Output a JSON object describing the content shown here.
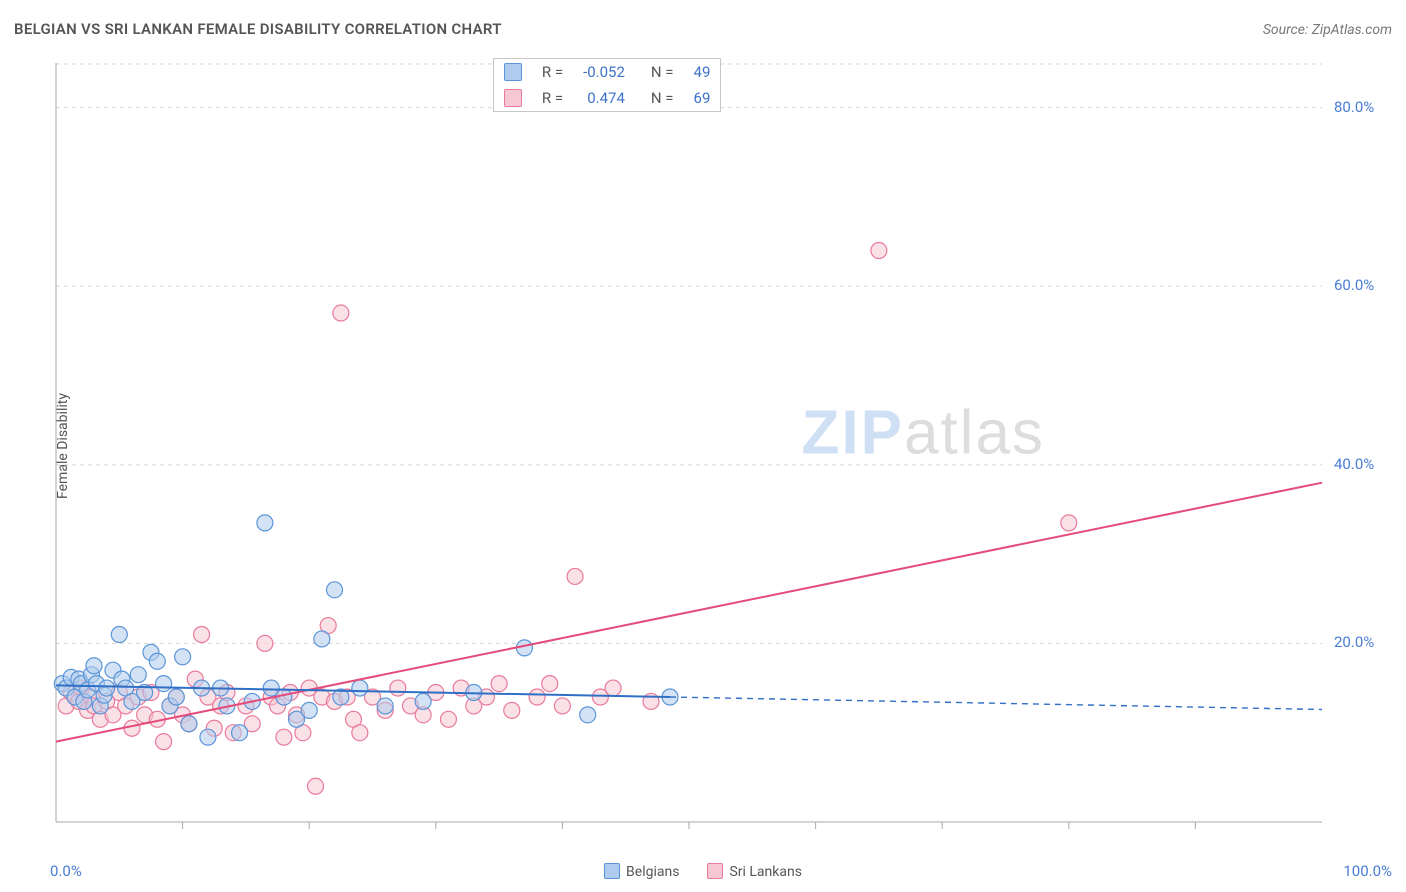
{
  "title": "BELGIAN VS SRI LANKAN FEMALE DISABILITY CORRELATION CHART",
  "source_prefix": "Source: ",
  "source_name": "ZipAtlas.com",
  "ylabel": "Female Disability",
  "watermark_a": "ZIP",
  "watermark_b": "atlas",
  "watermark_color_a": "#cfe0f5",
  "watermark_color_b": "#dddddd",
  "watermark_fontsize": 62,
  "series": {
    "belgians": {
      "label": "Belgians",
      "fill": "#aecced",
      "stroke": "#5b95d8",
      "line_color": "#2f6fc5",
      "line_width": 2,
      "R": "-0.052",
      "N": "49",
      "trend": {
        "x0": 0,
        "y0": 15.3,
        "x_solid_end": 48.5,
        "y_solid_end": 14.0,
        "x1": 100,
        "y1": 12.6
      },
      "points": [
        [
          0.5,
          15.5
        ],
        [
          0.8,
          15.0
        ],
        [
          1.2,
          16.2
        ],
        [
          1.5,
          14.0
        ],
        [
          1.8,
          16.0
        ],
        [
          2.0,
          15.5
        ],
        [
          2.2,
          13.5
        ],
        [
          2.5,
          14.8
        ],
        [
          2.8,
          16.5
        ],
        [
          3.0,
          17.5
        ],
        [
          3.2,
          15.5
        ],
        [
          3.5,
          13.0
        ],
        [
          3.8,
          14.2
        ],
        [
          4.0,
          15.0
        ],
        [
          4.5,
          17.0
        ],
        [
          5.0,
          21.0
        ],
        [
          5.2,
          16.0
        ],
        [
          5.5,
          15.0
        ],
        [
          6.0,
          13.5
        ],
        [
          6.5,
          16.5
        ],
        [
          7.0,
          14.5
        ],
        [
          7.5,
          19.0
        ],
        [
          8.0,
          18.0
        ],
        [
          8.5,
          15.5
        ],
        [
          9.0,
          13.0
        ],
        [
          9.5,
          14.0
        ],
        [
          10.0,
          18.5
        ],
        [
          10.5,
          11.0
        ],
        [
          11.5,
          15.0
        ],
        [
          12.0,
          9.5
        ],
        [
          13.0,
          15.0
        ],
        [
          13.5,
          13.0
        ],
        [
          14.5,
          10.0
        ],
        [
          15.5,
          13.5
        ],
        [
          16.5,
          33.5
        ],
        [
          17.0,
          15.0
        ],
        [
          18.0,
          14.0
        ],
        [
          19.0,
          11.5
        ],
        [
          20.0,
          12.5
        ],
        [
          21.0,
          20.5
        ],
        [
          22.0,
          26.0
        ],
        [
          22.5,
          14.0
        ],
        [
          24.0,
          15.0
        ],
        [
          26.0,
          13.0
        ],
        [
          29.0,
          13.5
        ],
        [
          33.0,
          14.5
        ],
        [
          37.0,
          19.5
        ],
        [
          42.0,
          12.0
        ],
        [
          48.5,
          14.0
        ]
      ]
    },
    "srilankans": {
      "label": "Sri Lankans",
      "fill": "#f6c8d4",
      "stroke": "#e97a9b",
      "line_color": "#e54b7a",
      "line_width": 2,
      "R": "0.474",
      "N": "69",
      "trend": {
        "x0": 0,
        "y0": 9.0,
        "x1": 100,
        "y1": 38.0
      },
      "points": [
        [
          0.8,
          13.0
        ],
        [
          1.2,
          14.5
        ],
        [
          1.5,
          14.0
        ],
        [
          1.8,
          13.5
        ],
        [
          2.0,
          15.0
        ],
        [
          2.5,
          12.5
        ],
        [
          2.8,
          14.0
        ],
        [
          3.0,
          13.0
        ],
        [
          3.5,
          11.5
        ],
        [
          4.0,
          13.5
        ],
        [
          4.5,
          12.0
        ],
        [
          5.0,
          14.5
        ],
        [
          5.5,
          13.0
        ],
        [
          6.0,
          10.5
        ],
        [
          6.5,
          14.0
        ],
        [
          7.0,
          12.0
        ],
        [
          7.5,
          14.5
        ],
        [
          8.0,
          11.5
        ],
        [
          8.5,
          9.0
        ],
        [
          9.0,
          13.0
        ],
        [
          9.5,
          14.0
        ],
        [
          10.0,
          12.0
        ],
        [
          10.5,
          11.0
        ],
        [
          11.0,
          16.0
        ],
        [
          11.5,
          21.0
        ],
        [
          12.0,
          14.0
        ],
        [
          12.5,
          10.5
        ],
        [
          13.0,
          13.0
        ],
        [
          13.5,
          14.5
        ],
        [
          14.0,
          10.0
        ],
        [
          15.0,
          13.0
        ],
        [
          15.5,
          11.0
        ],
        [
          16.5,
          20.0
        ],
        [
          17.0,
          14.0
        ],
        [
          17.5,
          13.0
        ],
        [
          18.0,
          9.5
        ],
        [
          18.5,
          14.5
        ],
        [
          19.0,
          12.0
        ],
        [
          19.5,
          10.0
        ],
        [
          20.0,
          15.0
        ],
        [
          20.5,
          4.0
        ],
        [
          21.0,
          14.0
        ],
        [
          21.5,
          22.0
        ],
        [
          22.0,
          13.5
        ],
        [
          22.5,
          57.0
        ],
        [
          23.0,
          14.0
        ],
        [
          23.5,
          11.5
        ],
        [
          24.0,
          10.0
        ],
        [
          25.0,
          14.0
        ],
        [
          26.0,
          12.5
        ],
        [
          27.0,
          15.0
        ],
        [
          28.0,
          13.0
        ],
        [
          29.0,
          12.0
        ],
        [
          30.0,
          14.5
        ],
        [
          31.0,
          11.5
        ],
        [
          32.0,
          15.0
        ],
        [
          33.0,
          13.0
        ],
        [
          34.0,
          14.0
        ],
        [
          35.0,
          15.5
        ],
        [
          36.0,
          12.5
        ],
        [
          38.0,
          14.0
        ],
        [
          39.0,
          15.5
        ],
        [
          40.0,
          13.0
        ],
        [
          41.0,
          27.5
        ],
        [
          43.0,
          14.0
        ],
        [
          44.0,
          15.0
        ],
        [
          65.0,
          64.0
        ],
        [
          80.0,
          33.5
        ],
        [
          47.0,
          13.5
        ]
      ]
    }
  },
  "marker_radius": 8,
  "marker_fill_opacity": 0.55,
  "axes": {
    "xlim": [
      0,
      100
    ],
    "ylim": [
      0,
      85
    ],
    "x_minor_ticks": [
      10,
      20,
      30,
      40,
      50,
      60,
      70,
      80,
      90
    ],
    "y_gridlines": [
      20,
      40,
      60,
      80
    ],
    "y_tick_labels": [
      "20.0%",
      "40.0%",
      "60.0%",
      "80.0%"
    ],
    "x_min_label": "0.0%",
    "x_max_label": "100.0%",
    "grid_color": "#d7d7d7",
    "axis_color": "#aaaaaa"
  },
  "stat_labels": {
    "R": "R =",
    "N": "N ="
  },
  "stat_value_color": "#3d73c9",
  "stat_box_border": "#c7c7c7"
}
